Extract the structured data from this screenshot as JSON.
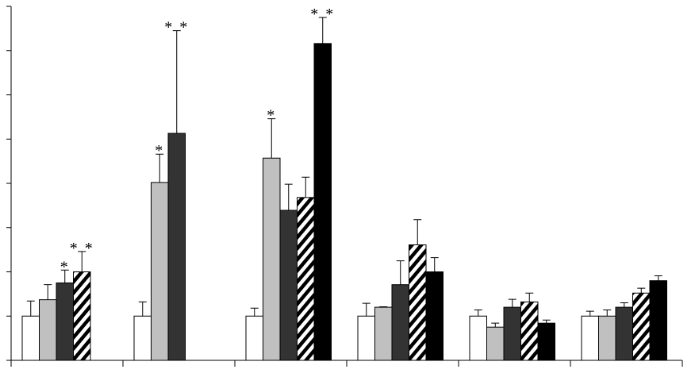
{
  "chart_data": {
    "type": "bar",
    "categories": [
      null,
      null,
      null,
      null,
      null,
      null
    ],
    "ylim": [
      0,
      8
    ],
    "yticks": [
      0,
      1,
      2,
      3,
      4,
      5,
      6,
      7,
      8
    ],
    "series": [
      {
        "color": "#ffffff",
        "values": [
          1.0,
          1.0,
          1.0,
          1.0,
          1.0,
          1.0
        ],
        "errors": [
          0.34,
          0.32,
          0.18,
          0.29,
          0.14,
          0.11
        ],
        "annotations": [
          null,
          null,
          null,
          null,
          null,
          null
        ]
      },
      {
        "color": "#c0c0c0",
        "values": [
          1.37,
          4.02,
          4.57,
          1.2,
          0.75,
          1.0
        ],
        "errors": [
          0.34,
          0.64,
          0.89,
          0.01,
          0.09,
          0.14
        ],
        "annotations": [
          null,
          "*",
          "*",
          null,
          null,
          null
        ]
      },
      {
        "color": "#333333",
        "values": [
          1.75,
          5.13,
          3.39,
          1.71,
          1.2,
          1.2
        ],
        "errors": [
          0.29,
          2.32,
          0.59,
          0.54,
          0.18,
          0.1
        ],
        "annotations": [
          "*",
          "* *",
          null,
          null,
          null,
          null
        ]
      },
      {
        "color": "#000000",
        "hatch": true,
        "values": [
          2.0,
          null,
          3.68,
          2.61,
          1.32,
          1.52
        ],
        "errors": [
          0.46,
          null,
          0.46,
          0.57,
          0.2,
          0.11
        ],
        "annotations": [
          "* *",
          null,
          null,
          null,
          null,
          null
        ]
      },
      {
        "color": "#000000",
        "values": [
          null,
          null,
          7.16,
          2.0,
          0.84,
          1.8
        ],
        "errors": [
          null,
          null,
          0.59,
          0.32,
          0.07,
          0.11
        ],
        "annotations": [
          null,
          null,
          "* *",
          null,
          null,
          null
        ]
      }
    ]
  }
}
